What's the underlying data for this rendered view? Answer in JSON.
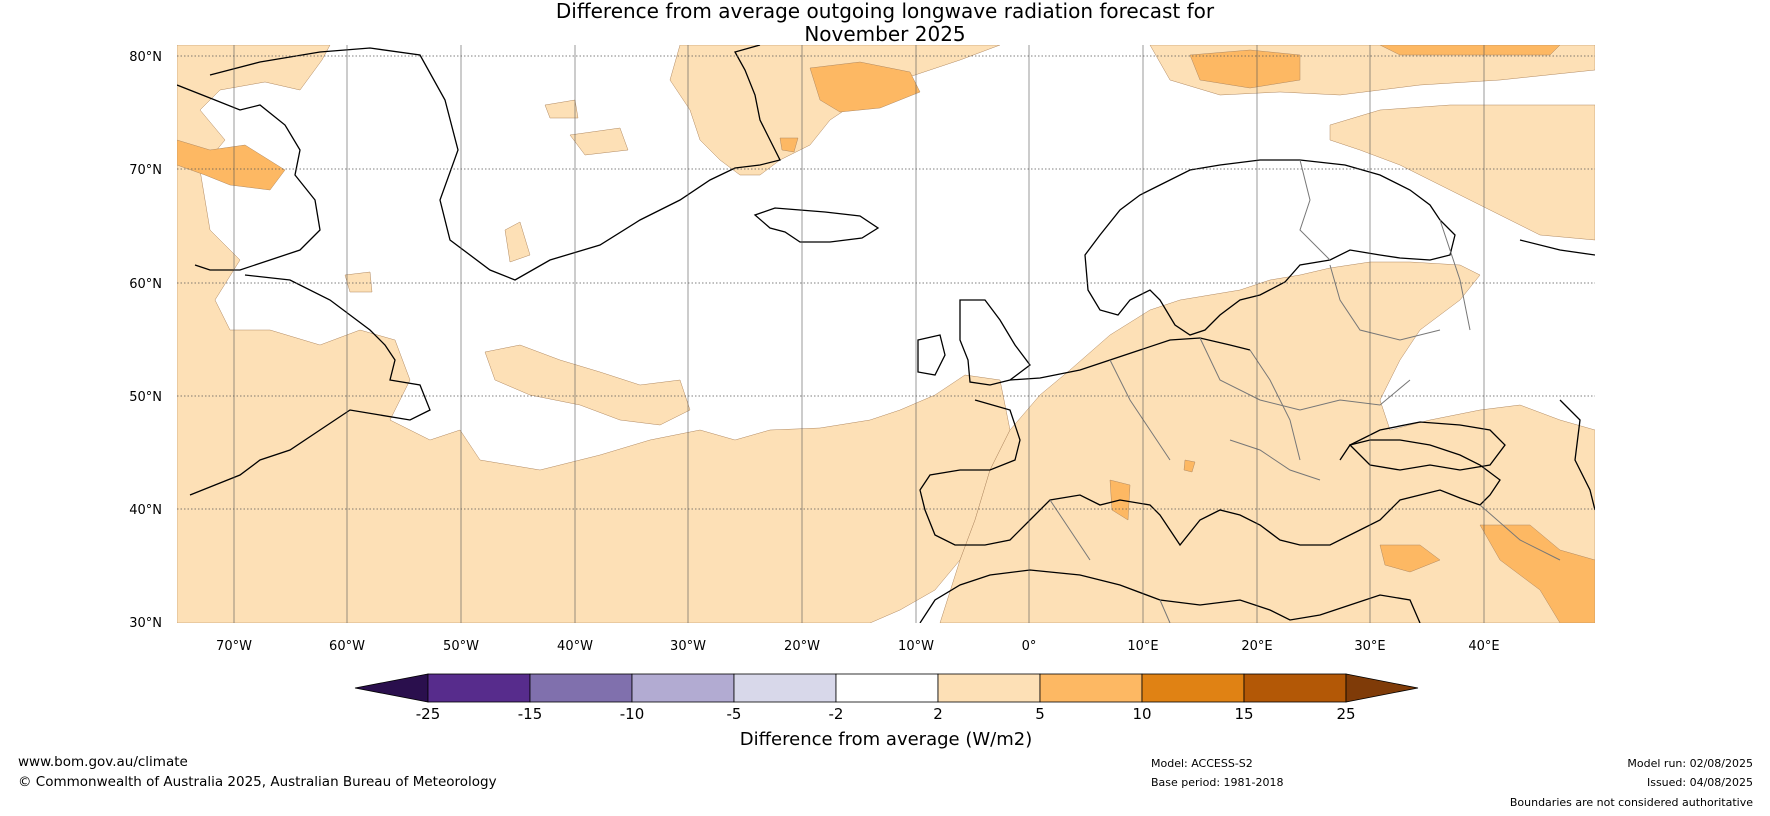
{
  "title_line1": "Difference from average outgoing longwave radiation forecast for",
  "title_line2": "November 2025",
  "lat_labels": [
    "80°N",
    "70°N",
    "60°N",
    "50°N",
    "40°N",
    "30°N"
  ],
  "lon_labels": [
    "70°W",
    "60°W",
    "50°W",
    "40°W",
    "30°W",
    "20°W",
    "10°W",
    "0°",
    "10°E",
    "20°E",
    "30°E",
    "40°E"
  ],
  "colorbar": {
    "title": "Difference from average (W/m2)",
    "tick_labels": [
      "-25",
      "-15",
      "-10",
      "-5",
      "-2",
      "2",
      "5",
      "10",
      "15",
      "25"
    ],
    "colors": {
      "under": "#2a0f4d",
      "bins": [
        "#572c8c",
        "#8070ad",
        "#b2abd2",
        "#d8d8ea",
        "#ffffff",
        "#fde0b6",
        "#fdb863",
        "#e08214",
        "#b35806"
      ],
      "over": "#7f3b08"
    }
  },
  "map_colors": {
    "pos_2_5": "#fde0b6",
    "pos_5_10": "#fdb863",
    "coast": "#000000",
    "borders": "#777777"
  },
  "footer": {
    "website": "www.bom.gov.au/climate",
    "copyright": "© Commonwealth of Australia 2025, Australian Bureau of Meteorology",
    "model": "Model: ACCESS-S2",
    "base_period": "Base period: 1981-2018",
    "model_run": "Model run: 02/08/2025",
    "issued": "Issued: 04/08/2025",
    "disclaimer": "Boundaries are not considered authoritative"
  }
}
